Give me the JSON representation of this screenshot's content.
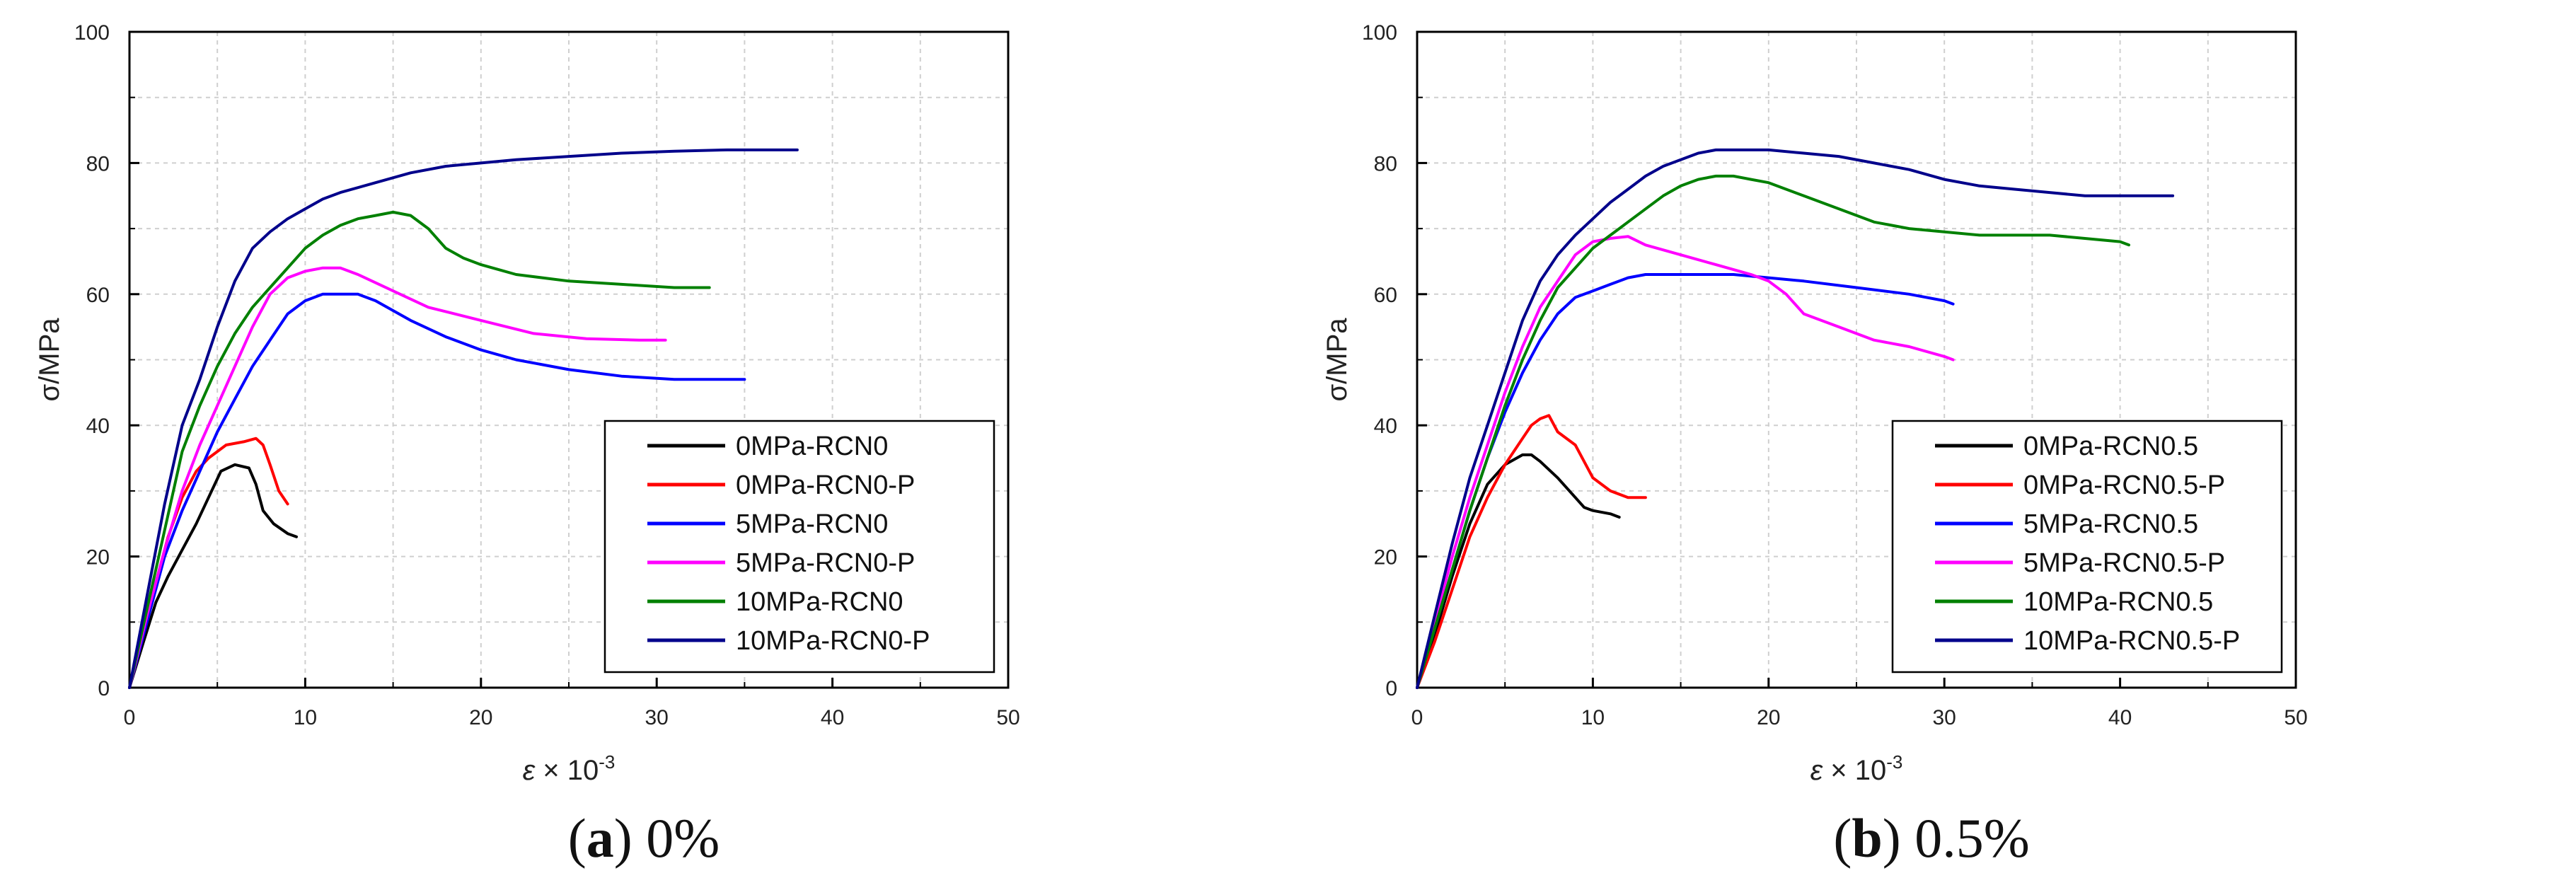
{
  "chart_data": [
    {
      "type": "line",
      "caption_letter": "a",
      "caption_text": "0%",
      "xlabel": "ε × 10",
      "xlabel_sup": "-3",
      "ylabel": "σ/MPa",
      "xlim": [
        0,
        50
      ],
      "ylim": [
        0,
        100
      ],
      "xticks": [
        0,
        10,
        20,
        30,
        40,
        50
      ],
      "yticks": [
        0,
        20,
        40,
        60,
        80,
        100
      ],
      "grid": true,
      "legend_position": "bottom-right",
      "series": [
        {
          "name": "0MPa-RCN0",
          "color": "#000000",
          "x": [
            0,
            0.8,
            1.5,
            2.2,
            3,
            3.8,
            4.5,
            5.2,
            6,
            6.8,
            7.2,
            7.6,
            8.2,
            9,
            9.5
          ],
          "y": [
            0,
            7,
            13,
            17,
            21,
            25,
            29,
            33,
            34,
            33.5,
            31,
            27,
            25,
            23.5,
            23
          ]
        },
        {
          "name": "0MPa-RCN0-P",
          "color": "#ff0000",
          "x": [
            0,
            0.8,
            1.5,
            2.2,
            3,
            3.8,
            4.5,
            5.5,
            6.5,
            7.2,
            7.6,
            8,
            8.5,
            9
          ],
          "y": [
            0,
            8,
            16,
            23,
            29,
            33,
            35,
            37,
            37.5,
            38,
            37,
            34,
            30,
            28
          ]
        },
        {
          "name": "5MPa-RCN0",
          "color": "#0000ff",
          "x": [
            0,
            1,
            2,
            3,
            4,
            5,
            6,
            7,
            8,
            9,
            10,
            11,
            12,
            13,
            14,
            16,
            18,
            20,
            22,
            25,
            28,
            31,
            34,
            35
          ],
          "y": [
            0,
            10,
            20,
            27,
            33,
            39,
            44,
            49,
            53,
            57,
            59,
            60,
            60,
            60,
            59,
            56,
            53.5,
            51.5,
            50,
            48.5,
            47.5,
            47,
            47,
            47
          ]
        },
        {
          "name": "5MPa-RCN0-P",
          "color": "#ff00ff",
          "x": [
            0,
            1,
            2,
            3,
            4,
            5,
            6,
            7,
            8,
            9,
            10,
            11,
            12,
            13,
            15,
            17,
            20,
            23,
            26,
            29,
            30.5
          ],
          "y": [
            0,
            11,
            21,
            30,
            37,
            43,
            49,
            55,
            60,
            62.5,
            63.5,
            64,
            64,
            63,
            60.5,
            58,
            56,
            54,
            53.2,
            53,
            53
          ]
        },
        {
          "name": "10MPa-RCN0",
          "color": "#008000",
          "x": [
            0,
            1,
            2,
            3,
            4,
            5,
            6,
            7,
            8,
            9,
            10,
            11,
            12,
            13,
            14,
            15,
            16,
            17,
            18,
            19,
            20,
            22,
            25,
            28,
            31,
            33
          ],
          "y": [
            0,
            12,
            24,
            36,
            43,
            49,
            54,
            58,
            61,
            64,
            67,
            69,
            70.5,
            71.5,
            72,
            72.5,
            72,
            70,
            67,
            65.5,
            64.5,
            63,
            62,
            61.5,
            61,
            61
          ]
        },
        {
          "name": "10MPa-RCN0-P",
          "color": "#00008b",
          "x": [
            0,
            1,
            2,
            3,
            4,
            5,
            6,
            7,
            8,
            9,
            10,
            11,
            12,
            14,
            16,
            18,
            20,
            22,
            25,
            28,
            31,
            34,
            36,
            38
          ],
          "y": [
            0,
            14,
            28,
            40,
            47,
            55,
            62,
            67,
            69.5,
            71.5,
            73,
            74.5,
            75.5,
            77,
            78.5,
            79.5,
            80,
            80.5,
            81,
            81.5,
            81.8,
            82,
            82,
            82
          ]
        }
      ]
    },
    {
      "type": "line",
      "caption_letter": "b",
      "caption_text": "0.5%",
      "xlabel": "ε × 10",
      "xlabel_sup": "-3",
      "ylabel": "σ/MPa",
      "xlim": [
        0,
        50
      ],
      "ylim": [
        0,
        100
      ],
      "xticks": [
        0,
        10,
        20,
        30,
        40,
        50
      ],
      "yticks": [
        0,
        20,
        40,
        60,
        80,
        100
      ],
      "grid": true,
      "legend_position": "bottom-right",
      "series": [
        {
          "name": "0MPa-RCN0.5",
          "color": "#000000",
          "x": [
            0,
            1,
            2,
            3,
            4,
            5,
            6,
            6.5,
            7,
            8,
            9,
            9.5,
            10,
            11,
            11.5
          ],
          "y": [
            0,
            8,
            17,
            25,
            31,
            34,
            35.5,
            35.5,
            34.5,
            32,
            29,
            27.5,
            27,
            26.5,
            26
          ]
        },
        {
          "name": "0MPa-RCN0.5-P",
          "color": "#ff0000",
          "x": [
            0,
            1,
            2,
            3,
            4,
            5,
            6,
            6.5,
            7,
            7.5,
            8,
            9,
            10,
            11,
            12,
            13
          ],
          "y": [
            0,
            7,
            15,
            23,
            29,
            34,
            38,
            40,
            41,
            41.5,
            39,
            37,
            32,
            30,
            29,
            29
          ]
        },
        {
          "name": "5MPa-RCN0.5",
          "color": "#0000ff",
          "x": [
            0,
            1,
            2,
            3,
            4,
            5,
            6,
            7,
            8,
            9,
            10,
            11,
            12,
            13,
            14,
            16,
            18,
            20,
            22,
            25,
            28,
            30,
            30.5
          ],
          "y": [
            0,
            9,
            18,
            27,
            35,
            42,
            48,
            53,
            57,
            59.5,
            60.5,
            61.5,
            62.5,
            63,
            63,
            63,
            63,
            62.5,
            62,
            61,
            60,
            59,
            58.5
          ]
        },
        {
          "name": "5MPa-RCN0.5-P",
          "color": "#ff00ff",
          "x": [
            0,
            1,
            2,
            3,
            4,
            5,
            6,
            7,
            8,
            9,
            10,
            11,
            12,
            13,
            15,
            17,
            19,
            20,
            21,
            22,
            24,
            26,
            28,
            30,
            30.5
          ],
          "y": [
            0,
            10,
            20,
            29,
            37,
            45,
            52,
            58,
            62,
            66,
            68,
            68.5,
            68.8,
            67.5,
            66,
            64.5,
            63,
            62,
            60,
            57,
            55,
            53,
            52,
            50.5,
            50
          ]
        },
        {
          "name": "10MPa-RCN0.5",
          "color": "#008000",
          "x": [
            0,
            1,
            2,
            3,
            4,
            5,
            6,
            7,
            8,
            9,
            10,
            11,
            12,
            13,
            14,
            15,
            16,
            17,
            18,
            19,
            20,
            22,
            24,
            26,
            28,
            30,
            32,
            34,
            36,
            38,
            40,
            40.5
          ],
          "y": [
            0,
            9,
            18,
            27,
            35,
            43,
            50,
            56,
            61,
            64,
            67,
            69,
            71,
            73,
            75,
            76.5,
            77.5,
            78,
            78,
            77.5,
            77,
            75,
            73,
            71,
            70,
            69.5,
            69,
            69,
            69,
            68.5,
            68,
            67.5
          ]
        },
        {
          "name": "10MPa-RCN0.5-P",
          "color": "#00008b",
          "x": [
            0,
            1,
            2,
            3,
            4,
            5,
            6,
            7,
            8,
            9,
            10,
            11,
            12,
            13,
            14,
            15,
            16,
            17,
            18,
            20,
            22,
            24,
            26,
            28,
            30,
            32,
            34,
            36,
            38,
            40,
            42,
            43
          ],
          "y": [
            0,
            11,
            22,
            32,
            40,
            48,
            56,
            62,
            66,
            69,
            71.5,
            74,
            76,
            78,
            79.5,
            80.5,
            81.5,
            82,
            82,
            82,
            81.5,
            81,
            80,
            79,
            77.5,
            76.5,
            76,
            75.5,
            75,
            75,
            75,
            75
          ]
        }
      ]
    }
  ]
}
